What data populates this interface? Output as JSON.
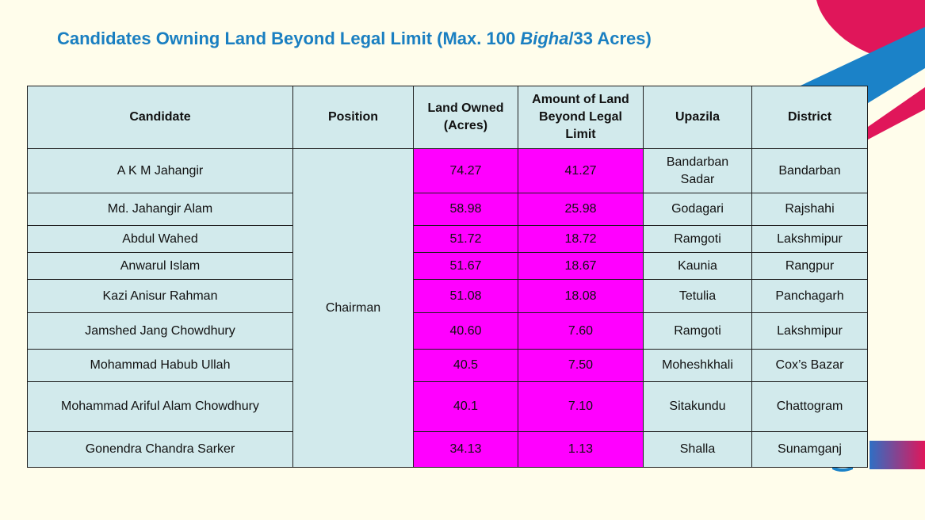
{
  "title": {
    "prefix": "Candidates Owning Land Beyond Legal Limit (Max. 100 ",
    "emph": "Bigha",
    "suffix": "/33 Acres)"
  },
  "table": {
    "headers": {
      "candidate": "Candidate",
      "position": "Position",
      "land_owned": "Land Owned (Acres)",
      "beyond_limit": "Amount of Land Beyond Legal Limit",
      "upazila": "Upazila",
      "district": "District"
    },
    "position_value": "Chairman",
    "rows": [
      {
        "candidate": "A K M Jahangir",
        "land_owned": "74.27",
        "beyond_limit": "41.27",
        "upazila": "Bandarban Sadar",
        "district": "Bandarban"
      },
      {
        "candidate": "Md. Jahangir Alam",
        "land_owned": "58.98",
        "beyond_limit": "25.98",
        "upazila": "Godagari",
        "district": "Rajshahi"
      },
      {
        "candidate": "Abdul Wahed",
        "land_owned": "51.72",
        "beyond_limit": "18.72",
        "upazila": "Ramgoti",
        "district": "Lakshmipur"
      },
      {
        "candidate": "Anwarul Islam",
        "land_owned": "51.67",
        "beyond_limit": "18.67",
        "upazila": "Kaunia",
        "district": "Rangpur"
      },
      {
        "candidate": "Kazi Anisur Rahman",
        "land_owned": "51.08",
        "beyond_limit": "18.08",
        "upazila": "Tetulia",
        "district": "Panchagarh"
      },
      {
        "candidate": "Jamshed Jang Chowdhury",
        "land_owned": "40.60",
        "beyond_limit": "7.60",
        "upazila": "Ramgoti",
        "district": "Lakshmipur"
      },
      {
        "candidate": "Mohammad Habub Ullah",
        "land_owned": "40.5",
        "beyond_limit": "7.50",
        "upazila": "Moheshkhali",
        "district": "Cox’s Bazar"
      },
      {
        "candidate": "Mohammad Ariful Alam Chowdhury",
        "land_owned": "40.1",
        "beyond_limit": "7.10",
        "upazila": "Sitakundu",
        "district": "Chattogram"
      },
      {
        "candidate": "Gonendra Chandra Sarker",
        "land_owned": "34.13",
        "beyond_limit": "1.13",
        "upazila": "Shalla",
        "district": "Sunamganj"
      }
    ]
  },
  "colors": {
    "background": "#fffdeb",
    "title": "#1a7fc1",
    "cell": "#d2eaec",
    "highlight": "#ff00ff",
    "accent_pink": "#e0165a",
    "accent_blue": "#1b82c8"
  }
}
